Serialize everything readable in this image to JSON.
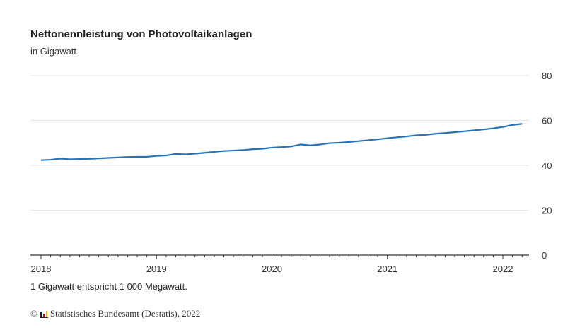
{
  "chart_data": {
    "type": "line",
    "title": "Nettonennleistung von Photovoltaikanlagen",
    "subtitle": "in Gigawatt",
    "note": "1 Gigawatt entspricht 1 000 Megawatt.",
    "source": "Statistisches Bundesamt (Destatis), 2022",
    "copyright": "©",
    "xlabel": "",
    "ylabel": "",
    "ylim": [
      0,
      80
    ],
    "yticks": [
      0,
      20,
      40,
      60,
      80
    ],
    "xticks": [
      "2018",
      "2019",
      "2020",
      "2021",
      "2022"
    ],
    "x_start": "2018-01",
    "x_frequency": "monthly",
    "grid": true,
    "color": "#2a72b5",
    "values": [
      42.3,
      42.5,
      43.0,
      42.7,
      42.8,
      42.9,
      43.1,
      43.3,
      43.5,
      43.7,
      43.8,
      43.8,
      44.2,
      44.4,
      45.1,
      44.9,
      45.2,
      45.6,
      46.0,
      46.4,
      46.6,
      46.8,
      47.2,
      47.4,
      47.9,
      48.1,
      48.4,
      49.3,
      48.9,
      49.3,
      49.9,
      50.1,
      50.4,
      50.8,
      51.2,
      51.6,
      52.1,
      52.5,
      52.9,
      53.4,
      53.6,
      54.1,
      54.4,
      54.8,
      55.2,
      55.6,
      56.0,
      56.5,
      57.1,
      58.0,
      58.5
    ]
  }
}
